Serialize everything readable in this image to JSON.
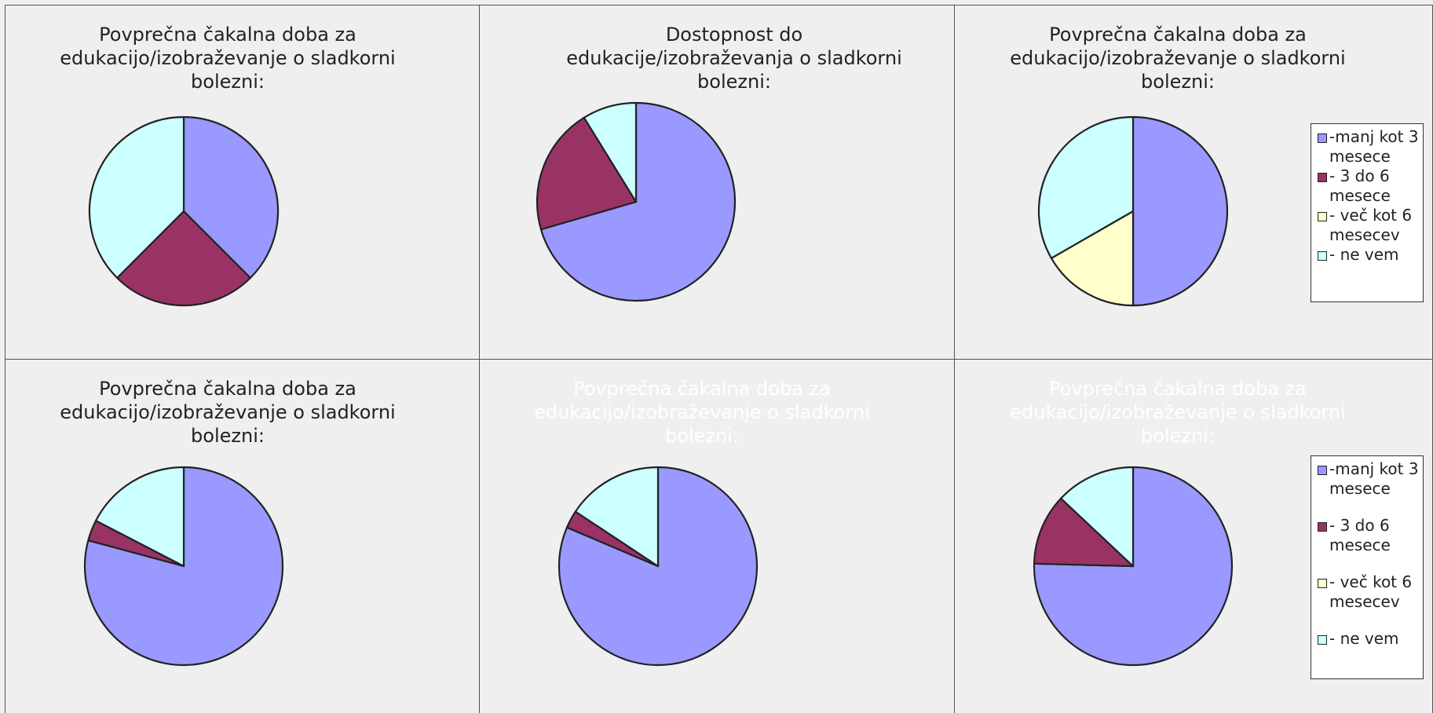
{
  "chart_data": [
    {
      "type": "pie",
      "title": "Povprečna čakalna doba za edukacijo/izobraževanje o sladkorni bolezni:",
      "title_color": "#222222",
      "categories": [
        "-manj kot 3 mesece",
        "- 3 do 6 mesece",
        "- več kot 6 mesecev",
        "- ne vem"
      ],
      "values": [
        37.5,
        25,
        0,
        37.5
      ],
      "colors": [
        "#9999ff",
        "#993366",
        "#ffffcc",
        "#ccffff"
      ],
      "legend": false
    },
    {
      "type": "pie",
      "title": "Dostopnost do edukacije/izobraževanja o sladkorni bolezni:",
      "title_color": "#222222",
      "categories": [
        "-manj kot 3 mesece",
        "- 3 do 6 mesece",
        "- več kot 6 mesecev",
        "- ne vem"
      ],
      "values": [
        70.5,
        20.7,
        0,
        8.8
      ],
      "colors": [
        "#9999ff",
        "#993366",
        "#ffffcc",
        "#ccffff"
      ],
      "legend": false
    },
    {
      "type": "pie",
      "title": "Povprečna čakalna doba za edukacijo/izobraževanje o sladkorni bolezni:",
      "title_color": "#222222",
      "categories": [
        "-manj kot 3 mesece",
        "- 3 do 6 mesece",
        "- več kot 6 mesecev",
        "- ne vem"
      ],
      "values": [
        50,
        0,
        16.7,
        33.3
      ],
      "colors": [
        "#9999ff",
        "#993366",
        "#ffffcc",
        "#ccffff"
      ],
      "legend": "right"
    },
    {
      "type": "pie",
      "title": "Povprečna čakalna doba za edukacijo/izobraževanje o sladkorni bolezni:",
      "title_color": "#222222",
      "categories": [
        "-manj kot 3 mesece",
        "- 3 do 6 mesece",
        "- več kot 6 mesecev",
        "- ne vem"
      ],
      "values": [
        79.2,
        3.4,
        0,
        17.4
      ],
      "colors": [
        "#9999ff",
        "#993366",
        "#ffffcc",
        "#ccffff"
      ],
      "legend": false
    },
    {
      "type": "pie",
      "title": "Povprečna čakalna doba za edukacijo/izobraževanje o sladkorni bolezni:",
      "title_color": "#ffffff",
      "categories": [
        "-manj kot 3 mesece",
        "- 3 do 6 mesece",
        "- več kot 6 mesecev",
        "- ne vem"
      ],
      "values": [
        81.4,
        2.9,
        0,
        15.7
      ],
      "colors": [
        "#9999ff",
        "#993366",
        "#ffffcc",
        "#ccffff"
      ],
      "legend": false
    },
    {
      "type": "pie",
      "title": "Povprečna čakalna doba za edukacijo/izobraževanje o sladkorni bolezni:",
      "title_color": "#ffffff",
      "categories": [
        "-manj kot 3 mesece",
        "- 3 do 6 mesece",
        "- več kot 6 mesecev",
        "- ne vem"
      ],
      "values": [
        75.4,
        11.6,
        0,
        13
      ],
      "colors": [
        "#9999ff",
        "#993366",
        "#ffffcc",
        "#ccffff"
      ],
      "legend": "right"
    }
  ]
}
